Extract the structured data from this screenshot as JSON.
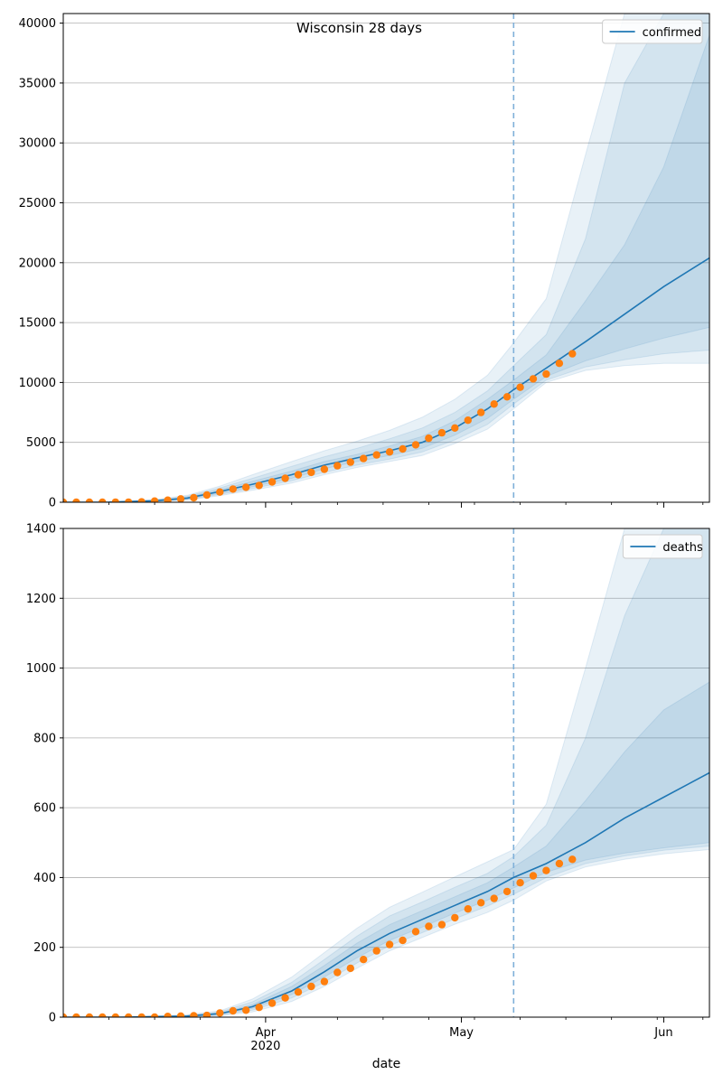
{
  "chart_data": [
    {
      "type": "line",
      "title": "Wisconsin 28 days",
      "xlabel": "",
      "ylabel": "",
      "x_range": [
        "2020-03-01",
        "2020-06-08"
      ],
      "ylim": [
        0,
        40800
      ],
      "yticks": [
        0,
        5000,
        10000,
        15000,
        20000,
        25000,
        30000,
        35000,
        40000
      ],
      "grid": "horizontal",
      "legend_position": "top-right",
      "forecast_start": "2020-05-09",
      "colors": {
        "line": "#1f77b4",
        "points": "#ff7f0e",
        "band": "#1f77b4",
        "divider": "#7fb0d9"
      },
      "series": [
        {
          "name": "confirmed",
          "style": "line",
          "x": [
            "2020-03-01",
            "2020-03-08",
            "2020-03-15",
            "2020-03-20",
            "2020-03-25",
            "2020-03-30",
            "2020-04-05",
            "2020-04-10",
            "2020-04-15",
            "2020-04-20",
            "2020-04-25",
            "2020-04-30",
            "2020-05-05",
            "2020-05-09",
            "2020-05-14",
            "2020-05-20",
            "2020-05-26",
            "2020-06-01",
            "2020-06-08"
          ],
          "y": [
            0,
            10,
            120,
            350,
            900,
            1500,
            2300,
            3100,
            3700,
            4300,
            5000,
            6200,
            7800,
            9400,
            11200,
            13400,
            15700,
            18000,
            20400
          ],
          "bands": [
            {
              "level": "inner",
              "lower": [
                0,
                5,
                90,
                280,
                750,
                1300,
                2000,
                2800,
                3400,
                3900,
                4500,
                5600,
                7000,
                8600,
                10500,
                11800,
                12800,
                13700,
                14600
              ],
              "upper": [
                0,
                15,
                150,
                420,
                1050,
                1750,
                2600,
                3400,
                4000,
                4700,
                5500,
                6800,
                8600,
                10200,
                12300,
                16800,
                21500,
                28000,
                39000
              ]
            },
            {
              "level": "middle",
              "lower": [
                0,
                3,
                70,
                220,
                650,
                1150,
                1800,
                2500,
                3100,
                3600,
                4200,
                5200,
                6500,
                8200,
                10200,
                11300,
                11900,
                12400,
                12700
              ],
              "upper": [
                0,
                20,
                180,
                500,
                1200,
                2000,
                3000,
                3800,
                4500,
                5300,
                6200,
                7500,
                9300,
                11400,
                14000,
                22000,
                35000,
                40800,
                40800
              ]
            },
            {
              "level": "outer",
              "lower": [
                0,
                2,
                50,
                180,
                550,
                1000,
                1600,
                2300,
                2900,
                3400,
                3900,
                4900,
                6100,
                7800,
                10000,
                11000,
                11400,
                11600,
                11600
              ],
              "upper": [
                0,
                30,
                220,
                580,
                1350,
                2300,
                3400,
                4300,
                5100,
                6000,
                7100,
                8600,
                10600,
                13300,
                17000,
                29000,
                40800,
                40800,
                40800
              ]
            }
          ]
        },
        {
          "name": "",
          "style": "points",
          "x": [
            "2020-03-01",
            "2020-03-03",
            "2020-03-05",
            "2020-03-07",
            "2020-03-09",
            "2020-03-11",
            "2020-03-13",
            "2020-03-15",
            "2020-03-17",
            "2020-03-19",
            "2020-03-21",
            "2020-03-23",
            "2020-03-25",
            "2020-03-27",
            "2020-03-29",
            "2020-03-31",
            "2020-04-02",
            "2020-04-04",
            "2020-04-06",
            "2020-04-08",
            "2020-04-10",
            "2020-04-12",
            "2020-04-14",
            "2020-04-16",
            "2020-04-18",
            "2020-04-20",
            "2020-04-22",
            "2020-04-24",
            "2020-04-26",
            "2020-04-28",
            "2020-04-30",
            "2020-05-02",
            "2020-05-04",
            "2020-05-06",
            "2020-05-08",
            "2020-05-10",
            "2020-05-12",
            "2020-05-14",
            "2020-05-16",
            "2020-05-18"
          ],
          "y": [
            0,
            0,
            0,
            3,
            6,
            10,
            30,
            100,
            170,
            280,
            380,
            600,
            850,
            1100,
            1250,
            1400,
            1700,
            2000,
            2300,
            2500,
            2750,
            3050,
            3350,
            3650,
            3950,
            4200,
            4450,
            4800,
            5350,
            5800,
            6200,
            6850,
            7500,
            8200,
            8800,
            9600,
            10300,
            10700,
            11600,
            12400
          ]
        }
      ]
    },
    {
      "type": "line",
      "title": "",
      "xlabel": "date",
      "ylabel": "",
      "x_range": [
        "2020-03-01",
        "2020-06-08"
      ],
      "xticks": [
        {
          "date": "2020-04-01",
          "label": "Apr",
          "sublabel": "2020"
        },
        {
          "date": "2020-05-01",
          "label": "May",
          "sublabel": ""
        },
        {
          "date": "2020-06-01",
          "label": "Jun",
          "sublabel": ""
        }
      ],
      "ylim": [
        0,
        1400
      ],
      "yticks": [
        0,
        200,
        400,
        600,
        800,
        1000,
        1200,
        1400
      ],
      "grid": "horizontal",
      "legend_position": "top-right",
      "forecast_start": "2020-05-09",
      "colors": {
        "line": "#1f77b4",
        "points": "#ff7f0e",
        "band": "#1f77b4",
        "divider": "#7fb0d9"
      },
      "series": [
        {
          "name": "deaths",
          "style": "line",
          "x": [
            "2020-03-01",
            "2020-03-10",
            "2020-03-20",
            "2020-03-25",
            "2020-03-30",
            "2020-04-05",
            "2020-04-10",
            "2020-04-15",
            "2020-04-20",
            "2020-04-25",
            "2020-04-30",
            "2020-05-05",
            "2020-05-09",
            "2020-05-14",
            "2020-05-20",
            "2020-05-26",
            "2020-06-01",
            "2020-06-08"
          ],
          "y": [
            0,
            0,
            3,
            10,
            30,
            75,
            130,
            190,
            240,
            280,
            320,
            360,
            400,
            440,
            500,
            570,
            630,
            700
          ],
          "bands": [
            {
              "level": "inner",
              "lower": [
                0,
                0,
                2,
                8,
                25,
                65,
                115,
                170,
                220,
                258,
                298,
                335,
                370,
                415,
                450,
                470,
                485,
                500
              ],
              "upper": [
                0,
                0,
                4,
                12,
                36,
                88,
                148,
                212,
                265,
                305,
                345,
                385,
                430,
                490,
                620,
                760,
                880,
                960
              ]
            },
            {
              "level": "middle",
              "lower": [
                0,
                0,
                1,
                6,
                20,
                55,
                100,
                155,
                205,
                242,
                282,
                318,
                352,
                400,
                440,
                462,
                478,
                490
              ],
              "upper": [
                0,
                0,
                5,
                15,
                44,
                100,
                165,
                232,
                290,
                330,
                372,
                412,
                460,
                550,
                800,
                1150,
                1400,
                1400
              ]
            },
            {
              "level": "outer",
              "lower": [
                0,
                0,
                1,
                4,
                15,
                45,
                88,
                140,
                190,
                228,
                266,
                300,
                335,
                390,
                430,
                452,
                468,
                480
              ],
              "upper": [
                0,
                0,
                7,
                18,
                52,
                115,
                185,
                255,
                315,
                358,
                402,
                445,
                480,
                610,
                1000,
                1400,
                1400,
                1400
              ]
            }
          ]
        },
        {
          "name": "",
          "style": "points",
          "x": [
            "2020-03-01",
            "2020-03-03",
            "2020-03-05",
            "2020-03-07",
            "2020-03-09",
            "2020-03-11",
            "2020-03-13",
            "2020-03-15",
            "2020-03-17",
            "2020-03-19",
            "2020-03-21",
            "2020-03-23",
            "2020-03-25",
            "2020-03-27",
            "2020-03-29",
            "2020-03-31",
            "2020-04-02",
            "2020-04-04",
            "2020-04-06",
            "2020-04-08",
            "2020-04-10",
            "2020-04-12",
            "2020-04-14",
            "2020-04-16",
            "2020-04-18",
            "2020-04-20",
            "2020-04-22",
            "2020-04-24",
            "2020-04-26",
            "2020-04-28",
            "2020-04-30",
            "2020-05-02",
            "2020-05-04",
            "2020-05-06",
            "2020-05-08",
            "2020-05-10",
            "2020-05-12",
            "2020-05-14",
            "2020-05-16",
            "2020-05-18"
          ],
          "y": [
            0,
            0,
            0,
            0,
            0,
            0,
            0,
            0,
            2,
            3,
            4,
            5,
            12,
            18,
            20,
            28,
            40,
            55,
            72,
            88,
            102,
            128,
            140,
            165,
            190,
            208,
            220,
            245,
            260,
            265,
            285,
            310,
            328,
            340,
            360,
            385,
            405,
            420,
            440,
            452
          ]
        }
      ]
    }
  ]
}
